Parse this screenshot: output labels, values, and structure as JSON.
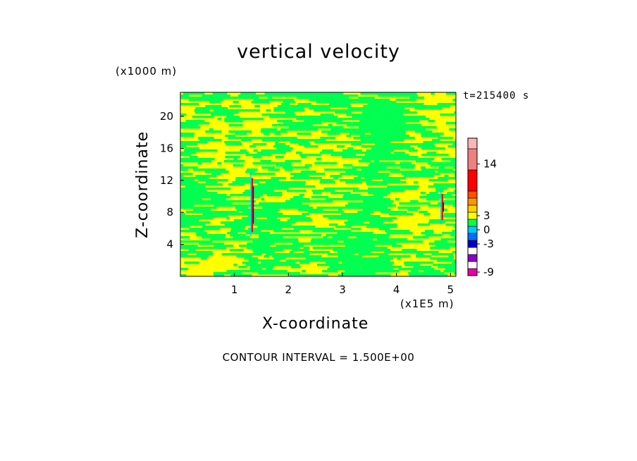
{
  "chart_data": {
    "type": "heatmap",
    "title": "vertical velocity",
    "xlabel": "X-coordinate",
    "ylabel": "Z-coordinate",
    "x_unit": "(x1E5 m)",
    "y_unit": "(x1000 m)",
    "time_label": "t=215400 s",
    "xlim": [
      0,
      5.1
    ],
    "ylim": [
      0,
      23
    ],
    "x_ticks": [
      "1",
      "2",
      "3",
      "4",
      "5"
    ],
    "x_tick_values": [
      1,
      2,
      3,
      4,
      5
    ],
    "y_ticks": [
      "4",
      "8",
      "12",
      "16",
      "20"
    ],
    "y_tick_values": [
      4,
      8,
      12,
      16,
      20
    ],
    "footer": "CONTOUR INTERVAL = 1.500E+00",
    "colorbar": {
      "tick_labels": [
        "14",
        "3",
        "0",
        "-3",
        "-9"
      ],
      "tick_values": [
        14,
        3,
        0,
        -3,
        -9
      ],
      "range": [
        -9.75,
        19.5
      ],
      "levels": [
        {
          "from": -9.75,
          "to": -8.25,
          "color": "#e800a8"
        },
        {
          "from": -8.25,
          "to": -6.75,
          "color": "#ffffff"
        },
        {
          "from": -6.75,
          "to": -5.25,
          "color": "#8a00c8"
        },
        {
          "from": -5.25,
          "to": -3.75,
          "color": "#ffffff"
        },
        {
          "from": -3.75,
          "to": -2.25,
          "color": "#0000c8"
        },
        {
          "from": -2.25,
          "to": -0.75,
          "color": "#0070ff"
        },
        {
          "from": -0.75,
          "to": 0.75,
          "color": "#00c8ff"
        },
        {
          "from": 0.75,
          "to": 2.25,
          "color": "#00ff50"
        },
        {
          "from": 2.25,
          "to": 3.75,
          "color": "#ffff00"
        },
        {
          "from": 3.75,
          "to": 5.25,
          "color": "#ffd200"
        },
        {
          "from": 5.25,
          "to": 6.75,
          "color": "#ff9600"
        },
        {
          "from": 6.75,
          "to": 8.25,
          "color": "#ff5000"
        },
        {
          "from": 8.25,
          "to": 12.75,
          "color": "#ff0000"
        },
        {
          "from": 12.75,
          "to": 17.25,
          "color": "#f08080"
        },
        {
          "from": 17.25,
          "to": 19.5,
          "color": "#ffb4b4"
        }
      ]
    },
    "field": {
      "dominant_colors": [
        "#00ff50",
        "#ffff00"
      ],
      "features": [
        {
          "x": 1.33,
          "z_range": [
            5,
            13
          ],
          "colors": [
            "#ff0000",
            "#0000c8",
            "#00c8ff"
          ]
        },
        {
          "x": 4.85,
          "z_range": [
            6.5,
            11
          ],
          "colors": [
            "#ff0000",
            "#0000c8",
            "#00c8ff"
          ]
        }
      ]
    }
  }
}
